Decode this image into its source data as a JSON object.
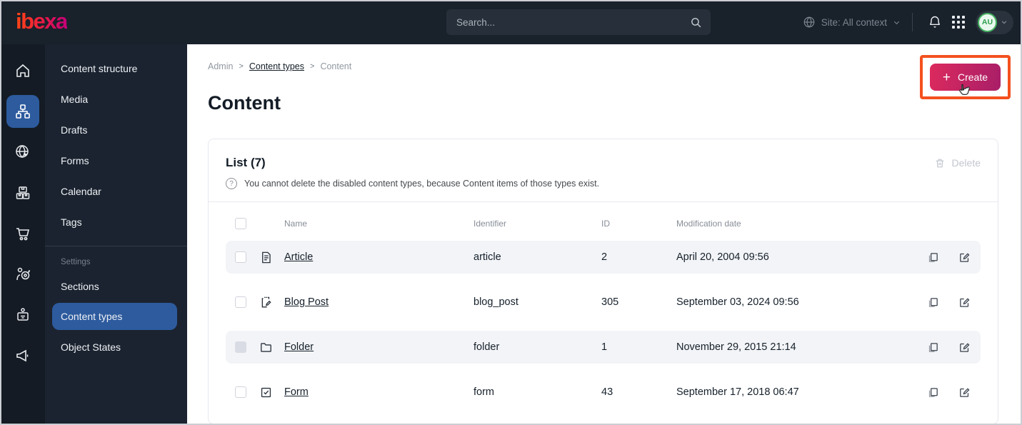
{
  "topbar": {
    "logo_text": "ibexa",
    "search_placeholder": "Search...",
    "site_context_label": "Site: All context",
    "avatar_initials": "AU"
  },
  "sidebar_rail": {
    "items": [
      "dashboard",
      "content-structure",
      "site",
      "product-catalog",
      "commerce",
      "personalization",
      "customer-portal",
      "marketing"
    ],
    "active": "content-structure"
  },
  "menu": {
    "items": [
      "Content structure",
      "Media",
      "Drafts",
      "Forms",
      "Calendar",
      "Tags"
    ],
    "settings_label": "Settings",
    "settings_items": [
      "Sections",
      "Content types",
      "Object States"
    ],
    "active_item": "Content types"
  },
  "breadcrumb": [
    "Admin",
    "Content types",
    "Content"
  ],
  "page": {
    "title": "Content",
    "create_button_label": "Create",
    "create_plus": "+"
  },
  "panel": {
    "list_title": "List (7)",
    "info_text": "You cannot delete the disabled content types, because Content items of those types exist.",
    "info_glyph": "?",
    "delete_button_label": "Delete"
  },
  "table": {
    "columns": [
      "Name",
      "Identifier",
      "ID",
      "Modification date"
    ],
    "rows": [
      {
        "name": "Article",
        "icon": "article-icon",
        "identifier": "article",
        "id": "2",
        "modification_date": "April 20, 2004 09:56",
        "checkbox_disabled": false
      },
      {
        "name": "Blog Post",
        "icon": "blog-post-icon",
        "identifier": "blog_post",
        "id": "305",
        "modification_date": "September 03, 2024 09:56",
        "checkbox_disabled": false
      },
      {
        "name": "Folder",
        "icon": "folder-icon",
        "identifier": "folder",
        "id": "1",
        "modification_date": "November 29, 2015 21:14",
        "checkbox_disabled": true
      },
      {
        "name": "Form",
        "icon": "form-icon",
        "identifier": "form",
        "id": "43",
        "modification_date": "September 17, 2018 06:47",
        "checkbox_disabled": false
      }
    ]
  },
  "colors": {
    "accent_gradient_start": "#dc2a5e",
    "accent_gradient_end": "#a81e68",
    "annotation_highlight": "#f4511e",
    "active_blue": "#2d5b9e",
    "topbar_bg": "#19212b",
    "avatar_green": "#2f9e4f",
    "stripe_grey": "#f3f4f7"
  }
}
